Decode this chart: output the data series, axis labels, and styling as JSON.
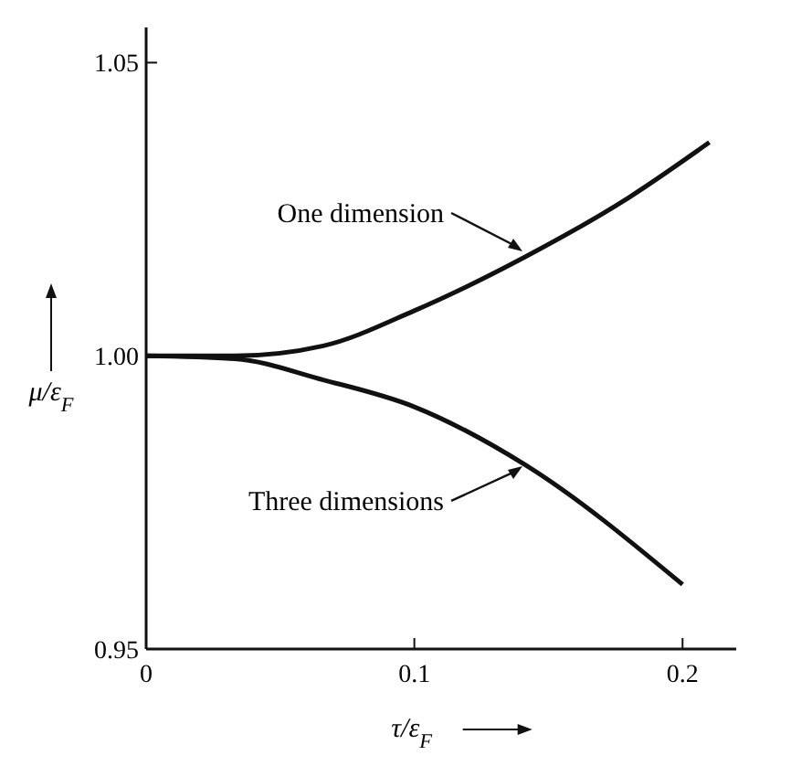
{
  "chart_data": {
    "type": "line",
    "xlabel": "τ/ε$_{F}$",
    "ylabel": "μ/ε$_{F}$",
    "xlim": [
      0,
      0.22
    ],
    "ylim": [
      0.95,
      1.056
    ],
    "xticks": [
      {
        "value": 0,
        "label": "0"
      },
      0.1,
      0.2
    ],
    "yticks": [
      0.95,
      {
        "value": 1,
        "label": "1.00"
      },
      1.05
    ],
    "series": [
      {
        "color": "#111111",
        "x": [
          0,
          0.033,
          0.066,
          0.1,
          0.141,
          0.18,
          0.21
        ],
        "values": [
          1,
          1,
          1.0017,
          1.0077,
          1.0168,
          1.027,
          1.0364
        ]
      },
      {
        "color": "#111111",
        "x": [
          0,
          0.033,
          0.066,
          0.1,
          0.141,
          0.2
        ],
        "values": [
          1,
          0.9995,
          0.9959,
          0.9913,
          0.9815,
          0.961
        ]
      }
    ],
    "annotations": [
      {
        "text": "One dimension",
        "x": 0.141,
        "y": 1.0175
      },
      {
        "text": "Three dimensions",
        "x": 0.141,
        "y": 0.9815
      }
    ],
    "grid": false,
    "marker": "none",
    "line_style": "solid"
  }
}
